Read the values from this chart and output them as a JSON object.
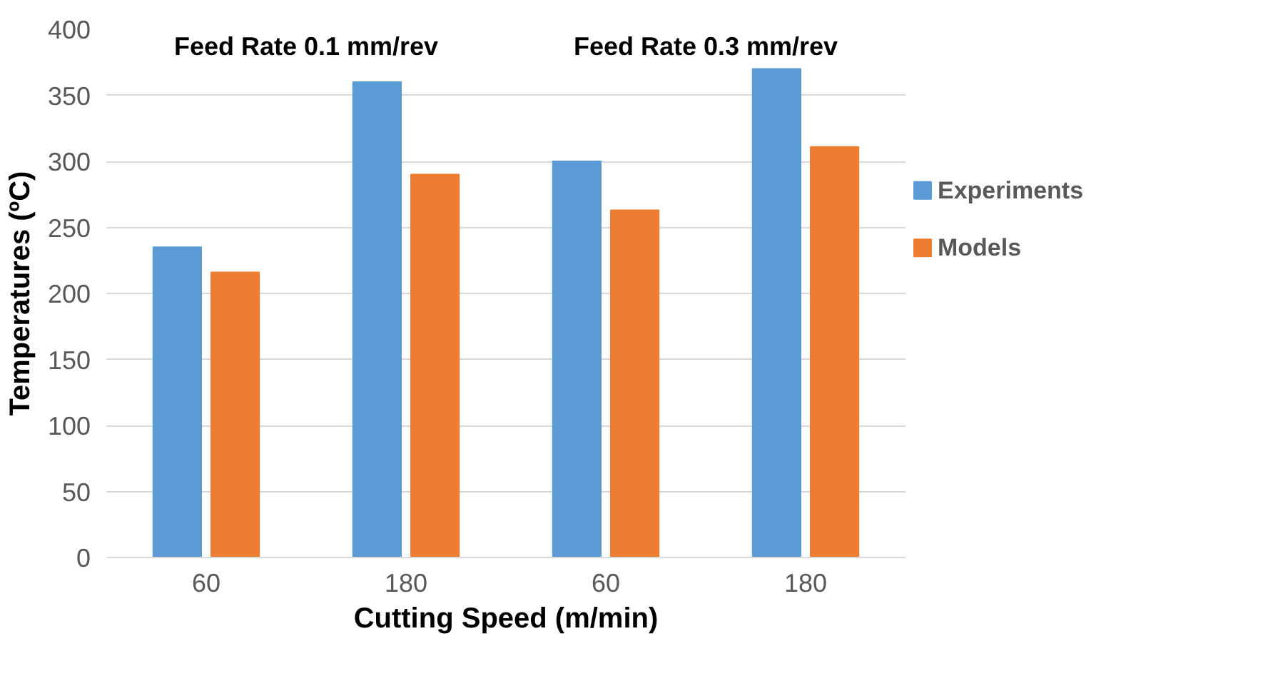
{
  "chart_data": {
    "type": "bar",
    "xlabel": "Cutting Speed (m/min)",
    "ylabel": "Temperatures (ºC)",
    "categories": [
      "60",
      "180",
      "60",
      "180"
    ],
    "series": [
      {
        "name": "Experiments",
        "color": "#5b9bd5",
        "values": [
          235,
          360,
          300,
          370
        ]
      },
      {
        "name": "Models",
        "color": "#ed7d31",
        "values": [
          216,
          290,
          263,
          311
        ]
      }
    ],
    "annotations": [
      "Feed Rate 0.1 mm/rev",
      "Feed Rate 0.3 mm/rev"
    ],
    "ylim": [
      0,
      400
    ],
    "yticks": [
      0,
      50,
      100,
      150,
      200,
      250,
      300,
      350,
      400
    ],
    "grid": "y",
    "legend": "right"
  }
}
